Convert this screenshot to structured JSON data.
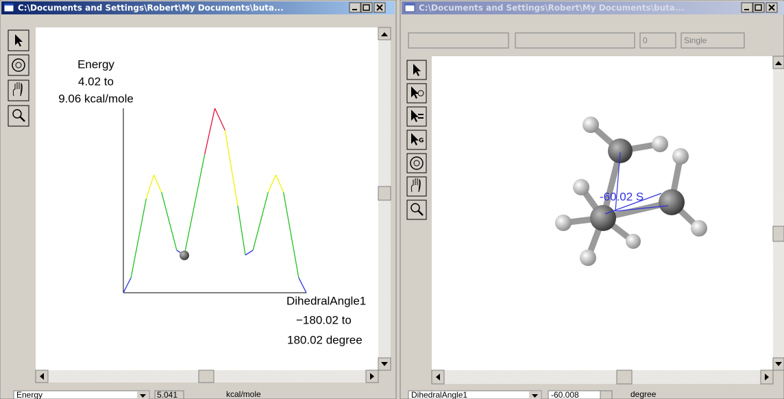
{
  "left_window": {
    "title": "C:\\Documents and Settings\\Robert\\My Documents\\buta...",
    "status": {
      "selector": "Energy",
      "value": 5.041,
      "unit": "kcal/mole"
    }
  },
  "right_window": {
    "title": "C:\\Documents and Settings\\Robert\\My Documents\\buta...",
    "fields": [
      "0",
      "Single"
    ],
    "molecule_label": "-60.02 S",
    "status": {
      "selector": "DihedralAngle1",
      "value": -60.008,
      "unit": "degree"
    }
  },
  "chart_data": {
    "type": "line",
    "y_label": [
      "Energy",
      "4.02 to",
      "9.06 kcal/mole"
    ],
    "x_label": [
      "DihedralAngle1",
      "−180.02 to",
      "180.02 degree"
    ],
    "x": [
      -180,
      -165,
      -135,
      -120,
      -105,
      -75,
      -60,
      -20,
      0,
      20,
      45,
      60,
      75,
      105,
      120,
      135,
      165,
      180
    ],
    "values": [
      4.02,
      4.43,
      6.59,
      7.24,
      6.77,
      5.18,
      5.05,
      7.8,
      9.06,
      8.46,
      6.4,
      5.05,
      5.18,
      6.77,
      7.24,
      6.77,
      4.43,
      4.02
    ],
    "xlim": [
      -180.02,
      180.02
    ],
    "ylim": [
      4.02,
      9.06
    ],
    "color_bands": [
      {
        "max": 5.3,
        "color": "#2a2ae0"
      },
      {
        "max": 6.6,
        "color": "#22c022"
      },
      {
        "max": 7.8,
        "color": "#f2f200"
      },
      {
        "max": 9.06,
        "color": "#e0103c"
      }
    ]
  }
}
